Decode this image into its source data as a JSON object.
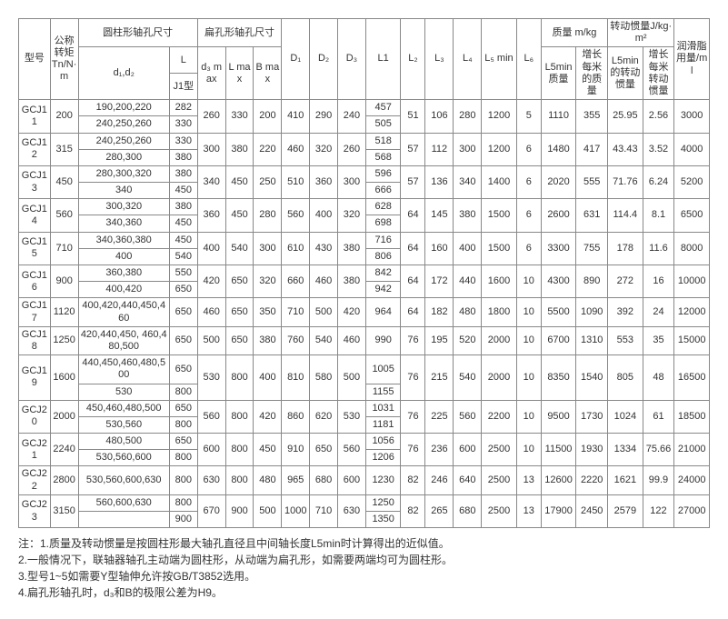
{
  "headers": {
    "model": "型号",
    "torque": "公称转矩Tn/N·m",
    "cyl_section": "圆柱形轴孔尺寸",
    "flat_section": "扁孔形轴孔尺寸",
    "d1d2": "d₁,d₂",
    "LJ1": "L",
    "J1type": "J1型",
    "d3max": "d₃ max",
    "Lmax": "L max",
    "Bmax": "B max",
    "D1": "D₁",
    "D2": "D₂",
    "D3": "D₃",
    "L1": "L1",
    "L2": "L₂",
    "L3": "L₃",
    "L4": "L₄",
    "L5min": "L₅ min",
    "L6": "L₆",
    "mass_section": "质量 m/kg",
    "L5min_mass": "L5min质量",
    "mass_per_m": "增长每米的质量",
    "inertia_section": "转动惯量J/kg·m²",
    "L5min_inertia": "L5min的转动惯量",
    "inertia_per_m": "增长每米转动惯量",
    "grease": "润滑脂用量/ml"
  },
  "rows": [
    {
      "m": "GCJ11",
      "t": "200",
      "d": [
        "190,200,220",
        "240,250,260"
      ],
      "lj": [
        "282",
        "330"
      ],
      "d3": "260",
      "lm": "330",
      "bm": "200",
      "D1": "410",
      "D2": "290",
      "D3": "240",
      "L1": [
        "457",
        "505"
      ],
      "L2": "51",
      "L3": "106",
      "L4": "280",
      "L5": "1200",
      "L6": "5",
      "ml": "1110",
      "mm": "355",
      "il": "25.95",
      "im": "2.56",
      "g": "3000"
    },
    {
      "m": "GCJ12",
      "t": "315",
      "d": [
        "240,250,260",
        "280,300"
      ],
      "lj": [
        "330",
        "380"
      ],
      "d3": "300",
      "lm": "380",
      "bm": "220",
      "D1": "460",
      "D2": "320",
      "D3": "260",
      "L1": [
        "518",
        "568"
      ],
      "L2": "57",
      "L3": "112",
      "L4": "300",
      "L5": "1200",
      "L6": "6",
      "ml": "1480",
      "mm": "417",
      "il": "43.43",
      "im": "3.52",
      "g": "4000"
    },
    {
      "m": "GCJ13",
      "t": "450",
      "d": [
        "280,300,320",
        "340"
      ],
      "lj": [
        "380",
        "450"
      ],
      "d3": "340",
      "lm": "450",
      "bm": "250",
      "D1": "510",
      "D2": "360",
      "D3": "300",
      "L1": [
        "596",
        "666"
      ],
      "L2": "57",
      "L3": "136",
      "L4": "340",
      "L5": "1400",
      "L6": "6",
      "ml": "2020",
      "mm": "555",
      "il": "71.76",
      "im": "6.24",
      "g": "5200"
    },
    {
      "m": "GCJ14",
      "t": "560",
      "d": [
        "300,320",
        "340,360"
      ],
      "lj": [
        "380",
        "450"
      ],
      "d3": "360",
      "lm": "450",
      "bm": "280",
      "D1": "560",
      "D2": "400",
      "D3": "320",
      "L1": [
        "628",
        "698"
      ],
      "L2": "64",
      "L3": "145",
      "L4": "380",
      "L5": "1500",
      "L6": "6",
      "ml": "2600",
      "mm": "631",
      "il": "114.4",
      "im": "8.1",
      "g": "6500"
    },
    {
      "m": "GCJ15",
      "t": "710",
      "d": [
        "340,360,380",
        "400"
      ],
      "lj": [
        "450",
        "540"
      ],
      "d3": "400",
      "lm": "540",
      "bm": "300",
      "D1": "610",
      "D2": "430",
      "D3": "380",
      "L1": [
        "716",
        "806"
      ],
      "L2": "64",
      "L3": "160",
      "L4": "400",
      "L5": "1500",
      "L6": "6",
      "ml": "3300",
      "mm": "755",
      "il": "178",
      "im": "11.6",
      "g": "8000"
    },
    {
      "m": "GCJ16",
      "t": "900",
      "d": [
        "360,380",
        "400,420"
      ],
      "lj": [
        "550",
        "650"
      ],
      "d3": "420",
      "lm": "650",
      "bm": "320",
      "D1": "660",
      "D2": "460",
      "D3": "380",
      "L1": [
        "842",
        "942"
      ],
      "L2": "64",
      "L3": "172",
      "L4": "440",
      "L5": "1600",
      "L6": "10",
      "ml": "4300",
      "mm": "890",
      "il": "272",
      "im": "16",
      "g": "10000"
    },
    {
      "m": "GCJ17",
      "t": "1120",
      "d": [
        "400,420,440,450,460"
      ],
      "lj": [
        "650"
      ],
      "d3": "460",
      "lm": "650",
      "bm": "350",
      "D1": "710",
      "D2": "500",
      "D3": "420",
      "L1": [
        "964"
      ],
      "L2": "64",
      "L3": "182",
      "L4": "480",
      "L5": "1800",
      "L6": "10",
      "ml": "5500",
      "mm": "1090",
      "il": "392",
      "im": "24",
      "g": "12000"
    },
    {
      "m": "GCJ18",
      "t": "1250",
      "d": [
        "420,440,450, 460,480,500"
      ],
      "lj": [
        "650"
      ],
      "d3": "500",
      "lm": "650",
      "bm": "380",
      "D1": "760",
      "D2": "540",
      "D3": "460",
      "L1": [
        "990"
      ],
      "L2": "76",
      "L3": "195",
      "L4": "520",
      "L5": "2000",
      "L6": "10",
      "ml": "6700",
      "mm": "1310",
      "il": "553",
      "im": "35",
      "g": "15000"
    },
    {
      "m": "GCJ19",
      "t": "1600",
      "d": [
        "440,450,460,480,500",
        "530"
      ],
      "lj": [
        "650",
        "800"
      ],
      "d3": "530",
      "lm": "800",
      "bm": "400",
      "D1": "810",
      "D2": "580",
      "D3": "500",
      "L1": [
        "1005",
        "1155"
      ],
      "L2": "76",
      "L3": "215",
      "L4": "540",
      "L5": "2000",
      "L6": "10",
      "ml": "8350",
      "mm": "1540",
      "il": "805",
      "im": "48",
      "g": "16500"
    },
    {
      "m": "GCJ20",
      "t": "2000",
      "d": [
        "450,460,480,500",
        "530,560"
      ],
      "lj": [
        "650",
        "800"
      ],
      "d3": "560",
      "lm": "800",
      "bm": "420",
      "D1": "860",
      "D2": "620",
      "D3": "530",
      "L1": [
        "1031",
        "1181"
      ],
      "L2": "76",
      "L3": "225",
      "L4": "560",
      "L5": "2200",
      "L6": "10",
      "ml": "9500",
      "mm": "1730",
      "il": "1024",
      "im": "61",
      "g": "18500"
    },
    {
      "m": "GCJ21",
      "t": "2240",
      "d": [
        "480,500",
        "530,560,600"
      ],
      "lj": [
        "650",
        "800"
      ],
      "d3": "600",
      "lm": "800",
      "bm": "450",
      "D1": "910",
      "D2": "650",
      "D3": "560",
      "L1": [
        "1056",
        "1206"
      ],
      "L2": "76",
      "L3": "236",
      "L4": "600",
      "L5": "2500",
      "L6": "10",
      "ml": "11500",
      "mm": "1930",
      "il": "1334",
      "im": "75.66",
      "g": "21000"
    },
    {
      "m": "GCJ22",
      "t": "2800",
      "d": [
        "530,560,600,630"
      ],
      "lj": [
        "800"
      ],
      "d3": "630",
      "lm": "800",
      "bm": "480",
      "D1": "965",
      "D2": "680",
      "D3": "600",
      "L1": [
        "1230"
      ],
      "L2": "82",
      "L3": "246",
      "L4": "640",
      "L5": "2500",
      "L6": "13",
      "ml": "12600",
      "mm": "2220",
      "il": "1621",
      "im": "99.9",
      "g": "24000"
    },
    {
      "m": "GCJ23",
      "t": "3150",
      "d": [
        "560,600,630",
        ""
      ],
      "lj": [
        "800",
        "900"
      ],
      "d3": "670",
      "lm": "900",
      "bm": "500",
      "D1": "1000",
      "D2": "710",
      "D3": "630",
      "L1": [
        "1250",
        "1350"
      ],
      "L2": "82",
      "L3": "265",
      "L4": "680",
      "L5": "2500",
      "L6": "13",
      "ml": "17900",
      "mm": "2450",
      "il": "2579",
      "im": "122",
      "g": "27000"
    }
  ],
  "notes": [
    "注：1.质量及转动惯量是按圆柱形最大轴孔直径且中间轴长度L5min时计算得出的近似值。",
    "2.一般情况下，联轴器轴孔主动端为圆柱形，从动端为扁孔形，如需要两端均可为圆柱形。",
    "3.型号1~5如需要Y型轴伸允许按GB/T3852选用。",
    "4.扁孔形轴孔时，d₃和B的极限公差为H9。"
  ]
}
